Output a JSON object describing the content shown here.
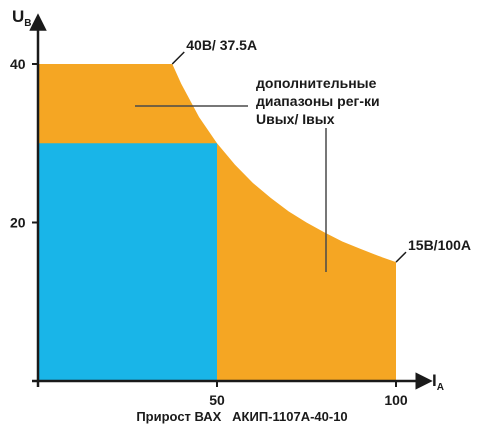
{
  "chart_data": {
    "type": "area",
    "title": "Прирост ВАХ   АКИП-1107А-40-10",
    "xlabel": "I",
    "xlabel_sub": "A",
    "ylabel": "U",
    "ylabel_sub": "B",
    "xlim": [
      0,
      100
    ],
    "ylim": [
      0,
      45
    ],
    "x_ticks": [
      {
        "value": 50,
        "label": "50"
      },
      {
        "value": 100,
        "label": "100"
      }
    ],
    "y_ticks": [
      {
        "value": 20,
        "label": "20"
      },
      {
        "value": 40,
        "label": "40"
      }
    ],
    "regions": [
      {
        "name": "extended",
        "color": "#f5a623",
        "boundary": [
          {
            "x": 0,
            "y": 40
          },
          {
            "x": 37.5,
            "y": 40
          },
          {
            "x": 40,
            "y": 37.5
          },
          {
            "x": 45,
            "y": 33.3
          },
          {
            "x": 50,
            "y": 30
          },
          {
            "x": 55,
            "y": 27.3
          },
          {
            "x": 60,
            "y": 25
          },
          {
            "x": 65,
            "y": 23.1
          },
          {
            "x": 70,
            "y": 21.4
          },
          {
            "x": 75,
            "y": 20
          },
          {
            "x": 80,
            "y": 18.75
          },
          {
            "x": 85,
            "y": 17.6
          },
          {
            "x": 90,
            "y": 16.7
          },
          {
            "x": 95,
            "y": 15.8
          },
          {
            "x": 100,
            "y": 15
          },
          {
            "x": 100,
            "y": 0
          },
          {
            "x": 0,
            "y": 0
          }
        ]
      },
      {
        "name": "base",
        "color": "#19b5e8",
        "boundary": [
          {
            "x": 0,
            "y": 0
          },
          {
            "x": 0,
            "y": 30
          },
          {
            "x": 50,
            "y": 30
          },
          {
            "x": 50,
            "y": 0
          }
        ]
      }
    ],
    "annotations": [
      {
        "id": "corner_top",
        "text": "40В/ 37.5А",
        "x": 37.5,
        "y": 40
      },
      {
        "id": "corner_right",
        "text": "15В/100А",
        "x": 100,
        "y": 15
      },
      {
        "id": "extra_ranges",
        "lines": [
          "дополнительные",
          "диапазоны рег-ки",
          "Uвых/ Iвых"
        ]
      }
    ]
  }
}
